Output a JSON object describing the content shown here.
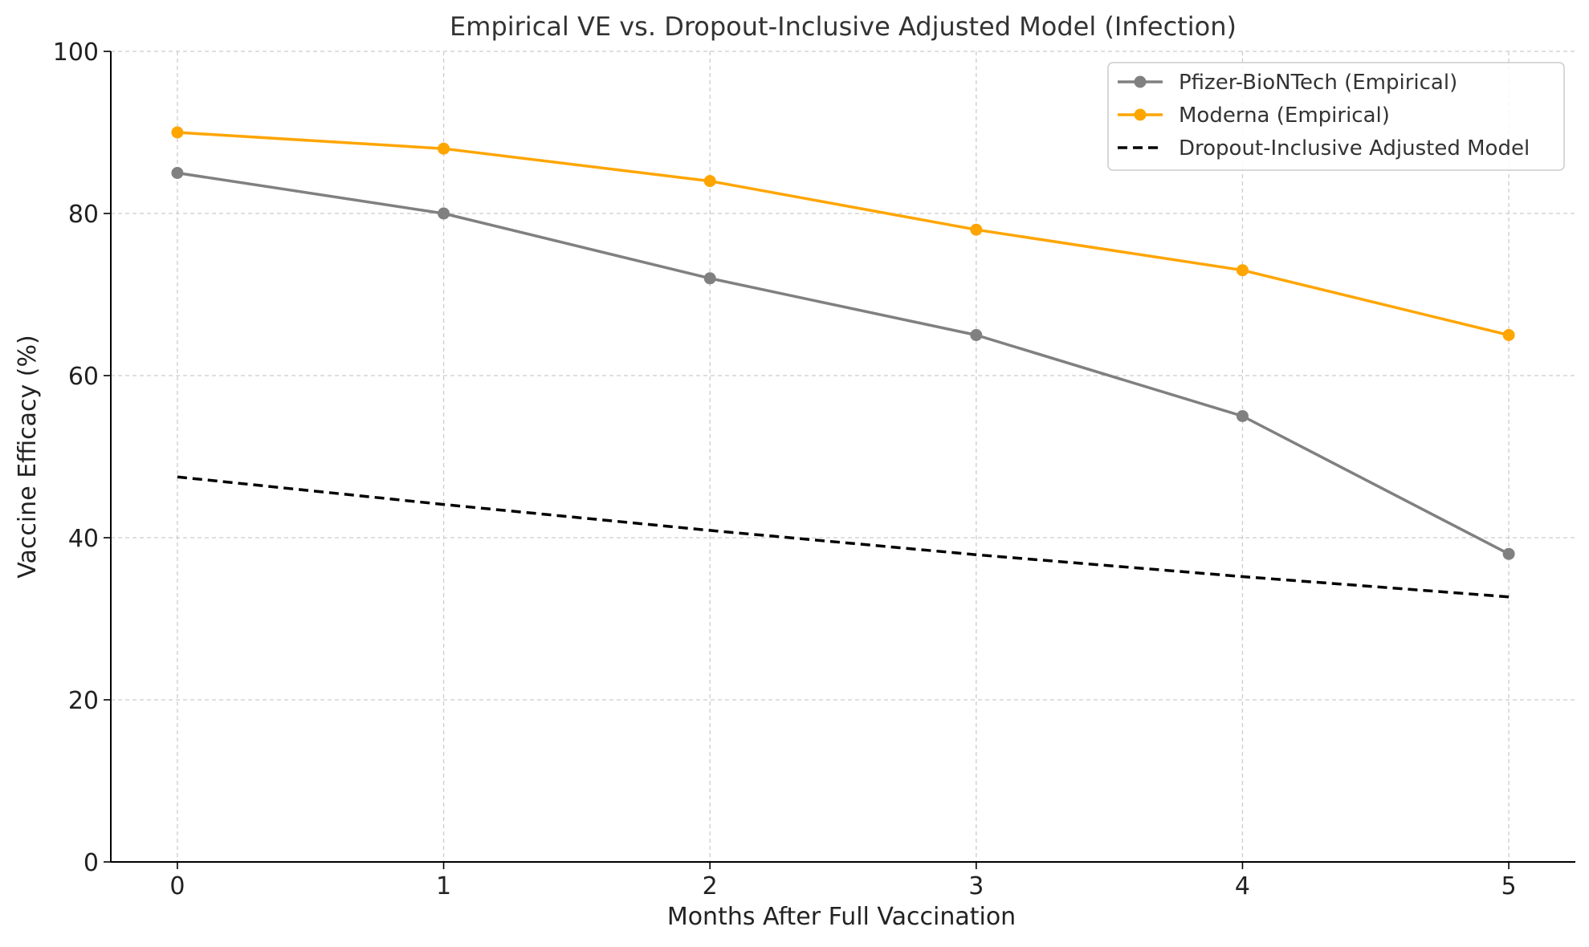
{
  "chart_data": {
    "type": "line",
    "title": "Empirical VE vs. Dropout-Inclusive Adjusted Model (Infection)",
    "xlabel": "Months After Full Vaccination",
    "ylabel": "Vaccine Efficacy (%)",
    "x": [
      0,
      1,
      2,
      3,
      4,
      5
    ],
    "xlim": [
      -0.25,
      5.25
    ],
    "ylim": [
      0,
      100
    ],
    "xticks": [
      "0",
      "1",
      "2",
      "3",
      "4",
      "5"
    ],
    "yticks": [
      "0",
      "20",
      "40",
      "60",
      "80",
      "100"
    ],
    "grid": true,
    "grid_style": "dashed",
    "legend_position": "top-right",
    "series": [
      {
        "name": "Pfizer-BioNTech (Empirical)",
        "values": [
          85,
          80,
          72,
          65,
          55,
          38
        ],
        "color": "#808080",
        "line_style": "solid",
        "marker": "circle"
      },
      {
        "name": "Moderna (Empirical)",
        "values": [
          90,
          88,
          84,
          78,
          73,
          65
        ],
        "color": "#FFA500",
        "line_style": "solid",
        "marker": "circle"
      },
      {
        "name": "Dropout-Inclusive Adjusted Model",
        "values": [
          47.5,
          44.1,
          40.9,
          37.9,
          35.2,
          32.7
        ],
        "color": "#000000",
        "line_style": "dashed",
        "marker": "none"
      }
    ]
  }
}
